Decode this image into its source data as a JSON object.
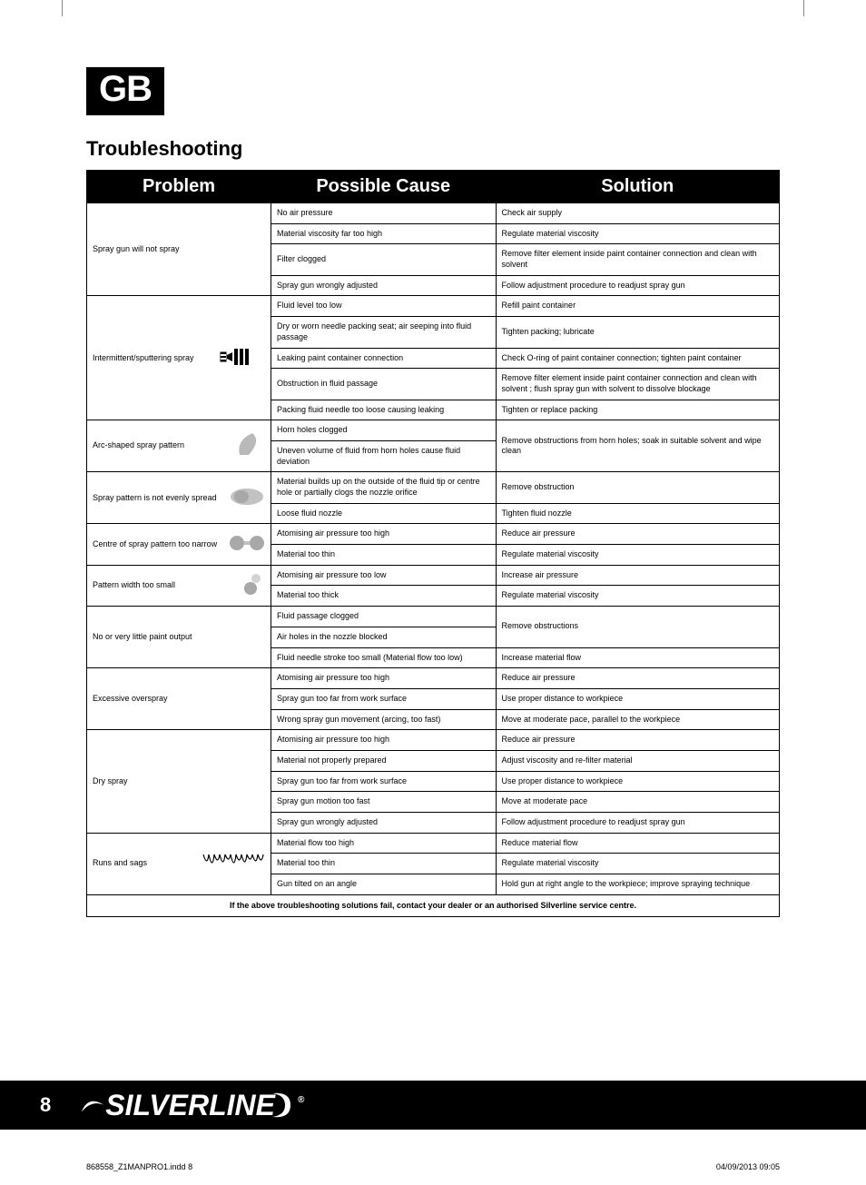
{
  "country_code": "GB",
  "section_title": "Troubleshooting",
  "table": {
    "headers": [
      "Problem",
      "Possible Cause",
      "Solution"
    ],
    "groups": [
      {
        "problem": "Spray gun will not spray",
        "icon": null,
        "rows": [
          {
            "cause": "No air pressure",
            "solution": "Check air supply"
          },
          {
            "cause": "Material viscosity far too high",
            "solution": "Regulate material viscosity"
          },
          {
            "cause": "Filter clogged",
            "solution": "Remove filter element inside paint container connection and clean with solvent"
          },
          {
            "cause": "Spray gun wrongly adjusted",
            "solution": "Follow adjustment procedure to readjust spray gun"
          }
        ]
      },
      {
        "problem": "Intermittent/sputtering spray",
        "icon": "sputter",
        "rows": [
          {
            "cause": "Fluid level too low",
            "solution": "Refill paint container"
          },
          {
            "cause": "Dry or worn needle packing seat; air seeping into fluid passage",
            "solution": "Tighten packing; lubricate"
          },
          {
            "cause": "Leaking paint container connection",
            "solution": "Check O-ring of paint container connection; tighten paint container"
          },
          {
            "cause": "Obstruction in fluid passage",
            "solution": "Remove filter element inside paint container connection and clean with solvent ; flush spray gun with solvent to dissolve blockage"
          },
          {
            "cause": "Packing fluid needle too loose causing leaking",
            "solution": "Tighten or replace packing"
          }
        ]
      },
      {
        "problem": "Arc-shaped spray pattern",
        "icon": "arc",
        "merged_solution": "Remove obstructions from horn holes; soak in suitable solvent and wipe clean",
        "rows": [
          {
            "cause": "Horn holes clogged"
          },
          {
            "cause": "Uneven volume of fluid from horn holes cause fluid deviation"
          }
        ]
      },
      {
        "problem": "Spray pattern is not evenly spread",
        "icon": "uneven",
        "rows": [
          {
            "cause": "Material builds up on the outside of the fluid tip or centre hole or partially clogs the nozzle orifice",
            "solution": "Remove obstruction"
          },
          {
            "cause": "Loose fluid nozzle",
            "solution": "Tighten fluid nozzle"
          }
        ]
      },
      {
        "problem": "Centre of spray pattern too narrow",
        "icon": "narrow",
        "rows": [
          {
            "cause": "Atomising air pressure too high",
            "solution": "Reduce air pressure"
          },
          {
            "cause": "Material too thin",
            "solution": "Regulate material viscosity"
          }
        ]
      },
      {
        "problem": "Pattern width too small",
        "icon": "small",
        "rows": [
          {
            "cause": "Atomising air pressure too low",
            "solution": "Increase air pressure"
          },
          {
            "cause": "Material too thick",
            "solution": "Regulate material viscosity"
          }
        ]
      },
      {
        "problem": "No or very little paint output",
        "icon": null,
        "rows": [
          {
            "cause": "Fluid passage clogged",
            "merged_solution": "Remove obstructions",
            "merge_span": 2
          },
          {
            "cause": "Air holes in the nozzle blocked"
          },
          {
            "cause": "Fluid needle stroke too small (Material flow too low)",
            "solution": "Increase material flow"
          }
        ]
      },
      {
        "problem": "Excessive overspray",
        "icon": null,
        "rows": [
          {
            "cause": "Atomising air pressure too high",
            "solution": "Reduce air pressure"
          },
          {
            "cause": "Spray gun too far from work surface",
            "solution": "Use proper distance to workpiece"
          },
          {
            "cause": "Wrong spray gun movement (arcing, too fast)",
            "solution": "Move at moderate pace, parallel to the workpiece"
          }
        ]
      },
      {
        "problem": "Dry spray",
        "icon": null,
        "rows": [
          {
            "cause": "Atomising air pressure too high",
            "solution": "Reduce air pressure"
          },
          {
            "cause": "Material not properly prepared",
            "solution": "Adjust viscosity and re-filter material"
          },
          {
            "cause": "Spray gun too far from work surface",
            "solution": "Use proper distance to workpiece"
          },
          {
            "cause": "Spray gun motion too fast",
            "solution": "Move at moderate pace"
          },
          {
            "cause": "Spray gun wrongly adjusted",
            "solution": "Follow adjustment procedure to readjust spray gun"
          }
        ]
      },
      {
        "problem": "Runs and sags",
        "icon": "runs",
        "rows": [
          {
            "cause": "Material flow too high",
            "solution": "Reduce material flow"
          },
          {
            "cause": "Material too thin",
            "solution": "Regulate material viscosity"
          },
          {
            "cause": "Gun tilted on an angle",
            "solution": "Hold gun at right angle to the workpiece; improve spraying technique"
          }
        ]
      }
    ],
    "footer_note": "If the above troubleshooting solutions fail, contact your dealer or an authorised Silverline service centre."
  },
  "page_number": "8",
  "brand": "SILVERLINE",
  "print_mark_left": "868558_Z1MANPRO1.indd   8",
  "print_mark_right": "04/09/2013   09:05",
  "colors": {
    "black": "#000000",
    "white": "#ffffff",
    "icon_gray": "#a8a8a8"
  }
}
